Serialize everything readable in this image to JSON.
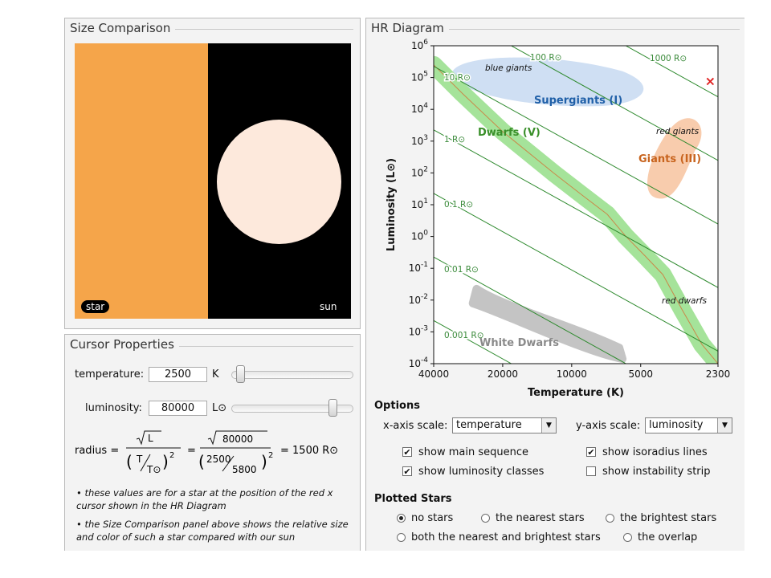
{
  "size_panel": {
    "title": "Size Comparison",
    "star_label": "star",
    "sun_label": "sun",
    "star_color": "#f5a54a",
    "sun_color": "#fde9dc"
  },
  "cursor_panel": {
    "title": "Cursor Properties",
    "temperature_label": "temperature:",
    "temperature_value": "2500",
    "temperature_unit": "K",
    "luminosity_label": "luminosity:",
    "luminosity_value": "80000",
    "luminosity_unit": "L⊙",
    "radius_label": "radius =",
    "L": "L",
    "T": "T",
    "Tsun": "T⊙",
    "exp": "2",
    "lum_num": "80000",
    "temp_num": "2500",
    "sun_temp": "5800",
    "result": "= 1500 R⊙",
    "note1": "• these values are for a star at the position of the red x cursor shown in the HR Diagram",
    "note2": "• the Size Comparison panel above shows the relative size and color of such a star compared with our sun"
  },
  "hr_panel": {
    "title": "HR Diagram"
  },
  "chart_data": {
    "type": "scatter",
    "xlabel": "Temperature (K)",
    "ylabel": "Luminosity (L⊙)",
    "x_ticks": [
      "40000",
      "20000",
      "10000",
      "5000",
      "2300"
    ],
    "y_ticks": [
      {
        "base": "10",
        "exp": "6"
      },
      {
        "base": "10",
        "exp": "5"
      },
      {
        "base": "10",
        "exp": "4"
      },
      {
        "base": "10",
        "exp": "3"
      },
      {
        "base": "10",
        "exp": "2"
      },
      {
        "base": "10",
        "exp": "1"
      },
      {
        "base": "10",
        "exp": "0"
      },
      {
        "base": "10",
        "exp": "-1"
      },
      {
        "base": "10",
        "exp": "-2"
      },
      {
        "base": "10",
        "exp": "-3"
      },
      {
        "base": "10",
        "exp": "-4"
      }
    ],
    "isoradius_labels": [
      "1000 R⊙",
      "100 R⊙",
      "10 R⊙",
      "1 R⊙",
      "0.1 R⊙",
      "0.01 R⊙",
      "0.001 R⊙"
    ],
    "regions": {
      "supergiants": "Supergiants (I)",
      "blue_giants": "blue giants",
      "dwarfs": "Dwarfs (V)",
      "giants": "Giants (III)",
      "red_giants": "red giants",
      "red_dwarfs": "red dwarfs",
      "white_dwarfs": "White Dwarfs"
    },
    "cursor": {
      "temperature": 2500,
      "luminosity": 80000,
      "marker": "×"
    },
    "colors": {
      "supergiants": "#2060a8",
      "dwarfs": "#3a8f2a",
      "giants": "#c8641e",
      "white_dwarfs": "#8a8a8a",
      "isoradius": "#2e8a2e",
      "cursor": "#e02020"
    }
  },
  "options": {
    "title": "Options",
    "x_axis_label": "x-axis scale:",
    "x_axis_value": "temperature",
    "y_axis_label": "y-axis scale:",
    "y_axis_value": "luminosity",
    "show_main_sequence": "show main sequence",
    "show_isoradius": "show isoradius lines",
    "show_lum_classes": "show luminosity classes",
    "show_instability": "show instability strip",
    "checked": {
      "main_sequence": true,
      "isoradius": true,
      "lum_classes": true,
      "instability": false
    }
  },
  "plotted": {
    "title": "Plotted Stars",
    "no_stars": "no stars",
    "nearest": "the nearest stars",
    "brightest": "the brightest stars",
    "both": "both the nearest and brightest stars",
    "overlap": "the overlap",
    "selected": "no stars"
  }
}
